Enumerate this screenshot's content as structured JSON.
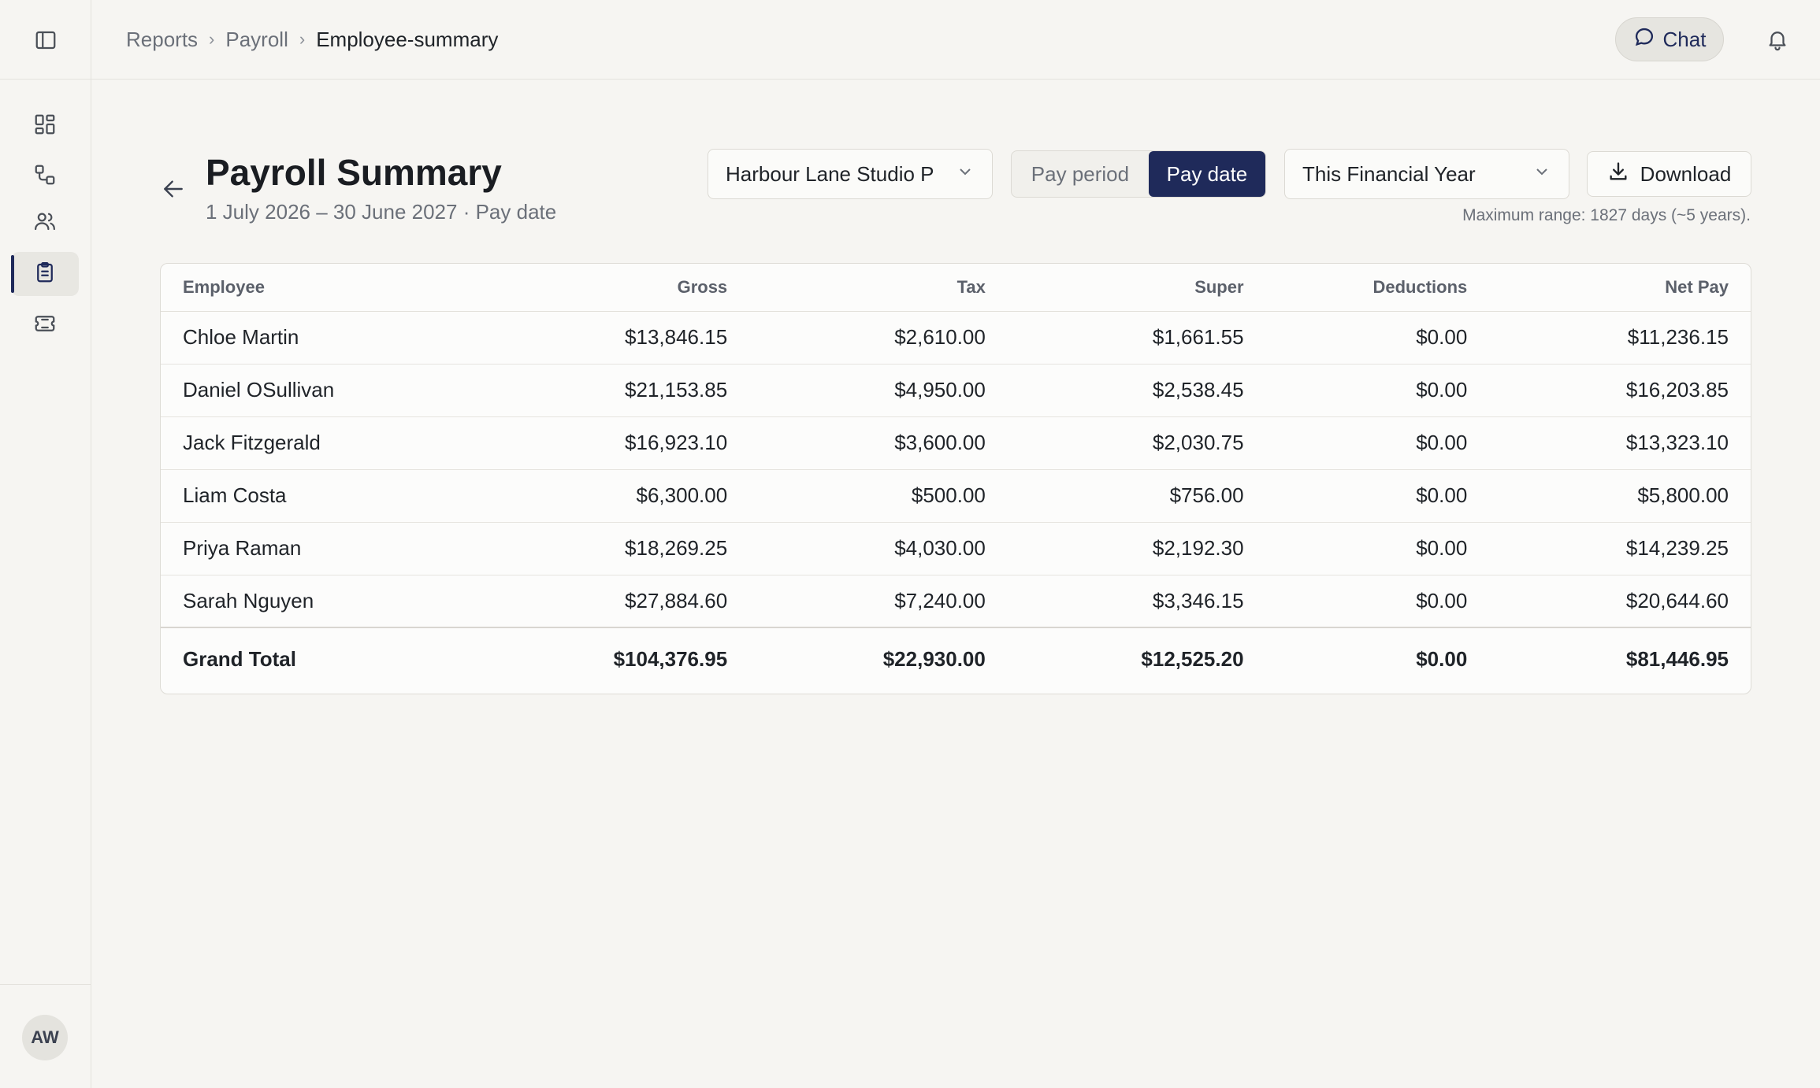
{
  "breadcrumb": {
    "items": [
      "Reports",
      "Payroll"
    ],
    "current": "Employee-summary",
    "separator": "›"
  },
  "topbar": {
    "chat_label": "Chat"
  },
  "user": {
    "initials": "AW"
  },
  "header": {
    "title": "Payroll Summary",
    "subtitle": "1 July 2026 – 30 June 2027 · Pay date",
    "company_select": "Harbour Lane Studio P",
    "toggle": {
      "option_off": "Pay period",
      "option_on": "Pay date"
    },
    "period_select": "This Financial Year",
    "download_label": "Download",
    "range_note": "Maximum range: 1827 days (~5 years)."
  },
  "table": {
    "columns": [
      "Employee",
      "Gross",
      "Tax",
      "Super",
      "Deductions",
      "Net Pay"
    ],
    "rows": [
      [
        "Chloe Martin",
        "$13,846.15",
        "$2,610.00",
        "$1,661.55",
        "$0.00",
        "$11,236.15"
      ],
      [
        "Daniel OSullivan",
        "$21,153.85",
        "$4,950.00",
        "$2,538.45",
        "$0.00",
        "$16,203.85"
      ],
      [
        "Jack Fitzgerald",
        "$16,923.10",
        "$3,600.00",
        "$2,030.75",
        "$0.00",
        "$13,323.10"
      ],
      [
        "Liam Costa",
        "$6,300.00",
        "$500.00",
        "$756.00",
        "$0.00",
        "$5,800.00"
      ],
      [
        "Priya Raman",
        "$18,269.25",
        "$4,030.00",
        "$2,192.30",
        "$0.00",
        "$14,239.25"
      ],
      [
        "Sarah Nguyen",
        "$27,884.60",
        "$7,240.00",
        "$3,346.15",
        "$0.00",
        "$20,644.60"
      ]
    ],
    "total": [
      "Grand Total",
      "$104,376.95",
      "$22,930.00",
      "$12,525.20",
      "$0.00",
      "$81,446.95"
    ]
  },
  "colors": {
    "accent": "#1f2a5a",
    "background": "#f6f5f2"
  },
  "icons": {
    "sidebar_toggle": "sidebar-toggle-icon",
    "nav": [
      "dashboard-icon",
      "workflow-icon",
      "people-icon",
      "clipboard-icon",
      "ticket-icon"
    ],
    "chat": "chat-bubble-icon",
    "bell": "bell-icon",
    "back": "arrow-left-icon",
    "chevron": "chevron-down-icon",
    "download": "download-icon"
  }
}
